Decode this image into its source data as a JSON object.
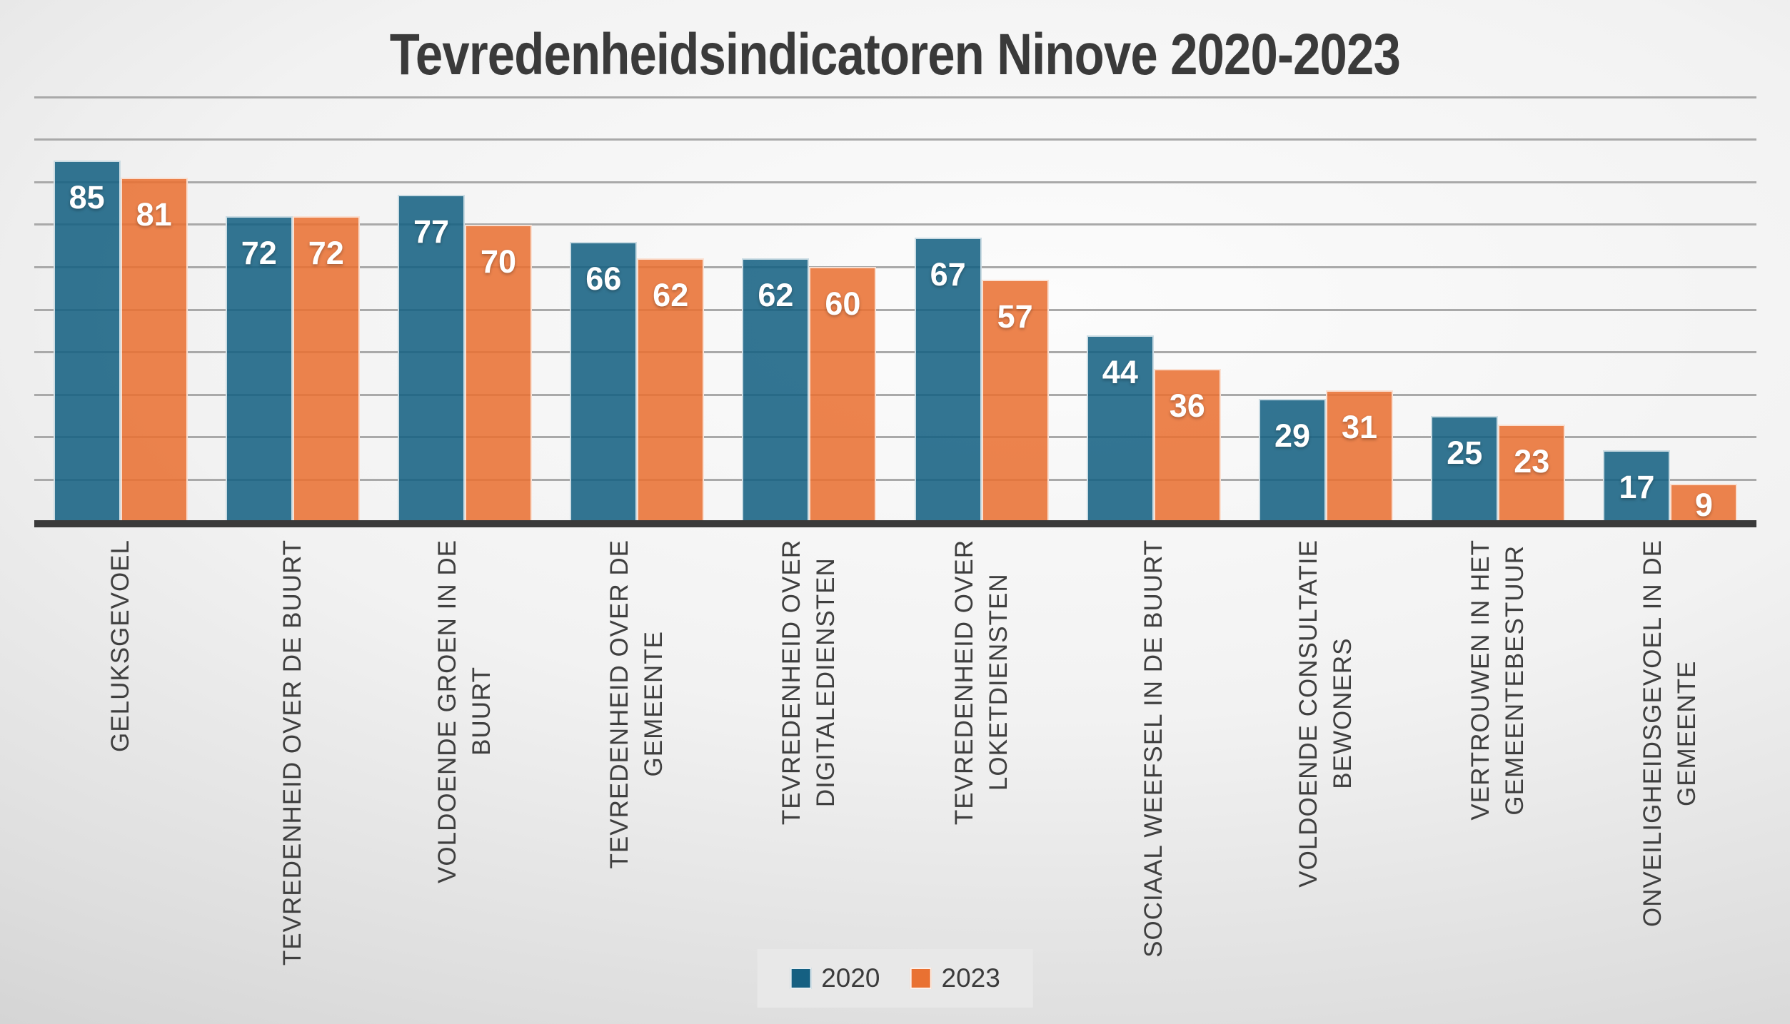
{
  "title": "Tevredenheidsindicatoren Ninove 2020-2023",
  "colors": {
    "series_2020": "#156082",
    "series_2023": "#E97132",
    "gridline": "#a9a9a9",
    "axis_line": "#3a3a3a",
    "title_text": "#3a3a3a",
    "category_text": "#3f3f3f",
    "data_label_text": "#ffffff",
    "legend_panel": "#e8e8e8"
  },
  "legend": {
    "position": "bottom-center",
    "items": [
      {
        "label": "2020",
        "color": "#156082"
      },
      {
        "label": "2023",
        "color": "#E97132"
      }
    ]
  },
  "chart_data": {
    "type": "bar",
    "title": "Tevredenheidsindicatoren Ninove 2020-2023",
    "xlabel": "",
    "ylabel": "",
    "ylim": [
      0,
      100
    ],
    "gridline_step": 10,
    "grid": true,
    "value_axis_labels_visible": false,
    "data_labels": true,
    "legend_position": "bottom",
    "categories": [
      "GELUKSGEVOEL",
      "TEVREDENHEID OVER DE BUURT",
      "VOLDOENDE GROEN IN DE BUURT",
      "TEVREDENHEID OVER DE GEMEENTE",
      "TEVREDENHEID OVER DIGITALEDIENSTEN",
      "TEVREDENHEID OVER LOKETDIENSTEN",
      "SOCIAAL WEEFSEL IN DE BUURT",
      "VOLDOENDE CONSULTATIE BEWONERS",
      "VERTROUWEN IN HET GEMEENTEBESTUUR",
      "ONVEILIGHEIDSGEVOEL IN DE GEMEENTE"
    ],
    "category_lines": [
      [
        "GELUKSGEVOEL"
      ],
      [
        "TEVREDENHEID OVER DE BUURT"
      ],
      [
        "VOLDOENDE GROEN IN DE",
        "BUURT"
      ],
      [
        "TEVREDENHEID OVER DE",
        "GEMEENTE"
      ],
      [
        "TEVREDENHEID OVER",
        "DIGITALEDIENSTEN"
      ],
      [
        "TEVREDENHEID OVER",
        "LOKETDIENSTEN"
      ],
      [
        "SOCIAAL WEEFSEL IN DE BUURT"
      ],
      [
        "VOLDOENDE CONSULTATIE",
        "BEWONERS"
      ],
      [
        "VERTROUWEN IN HET",
        "GEMEENTEBESTUUR"
      ],
      [
        "ONVEILIGHEIDSGEVOEL IN DE",
        "GEMEENTE"
      ]
    ],
    "series": [
      {
        "name": "2020",
        "color": "#156082",
        "values": [
          85,
          72,
          77,
          66,
          62,
          67,
          44,
          29,
          25,
          17
        ]
      },
      {
        "name": "2023",
        "color": "#E97132",
        "values": [
          81,
          72,
          70,
          62,
          60,
          57,
          36,
          31,
          23,
          9
        ]
      }
    ]
  }
}
